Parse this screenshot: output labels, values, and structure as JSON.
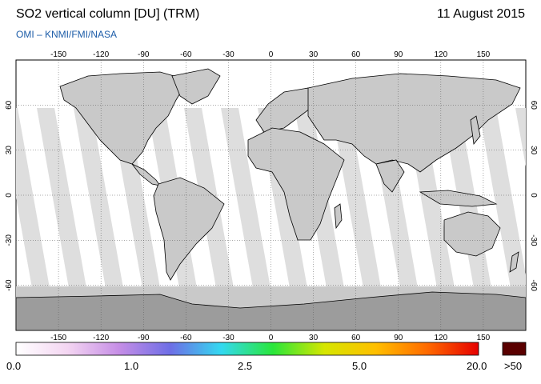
{
  "header": {
    "title": "SO2 vertical column [DU] (TRM)",
    "date": "11 August 2015",
    "credit": "OMI  –  KNMI/FMI/NASA"
  },
  "map": {
    "lon_ticks": [
      "-150",
      "-120",
      "-90",
      "-60",
      "-30",
      "0",
      "30",
      "60",
      "90",
      "120",
      "150"
    ],
    "lat_ticks": [
      "60",
      "30",
      "0",
      "-30",
      "-60"
    ],
    "colors": {
      "land_fill": "#c9c9c9",
      "swath_fill": "#a6a6a6",
      "antarctica": "#9c9c9c",
      "frame": "#000000"
    }
  },
  "colorbar": {
    "labels": [
      "0.0",
      "1.0",
      "2.5",
      "5.0",
      "20.0"
    ],
    "overflow_label": ">50",
    "overflow_color": "#5a0000",
    "gradient": [
      "#ffffff",
      "#f4d6f2",
      "#c68ee6",
      "#6e6ee6",
      "#33d9f0",
      "#29e63a",
      "#d6e600",
      "#ffbf00",
      "#ff6a00",
      "#e60000"
    ]
  }
}
